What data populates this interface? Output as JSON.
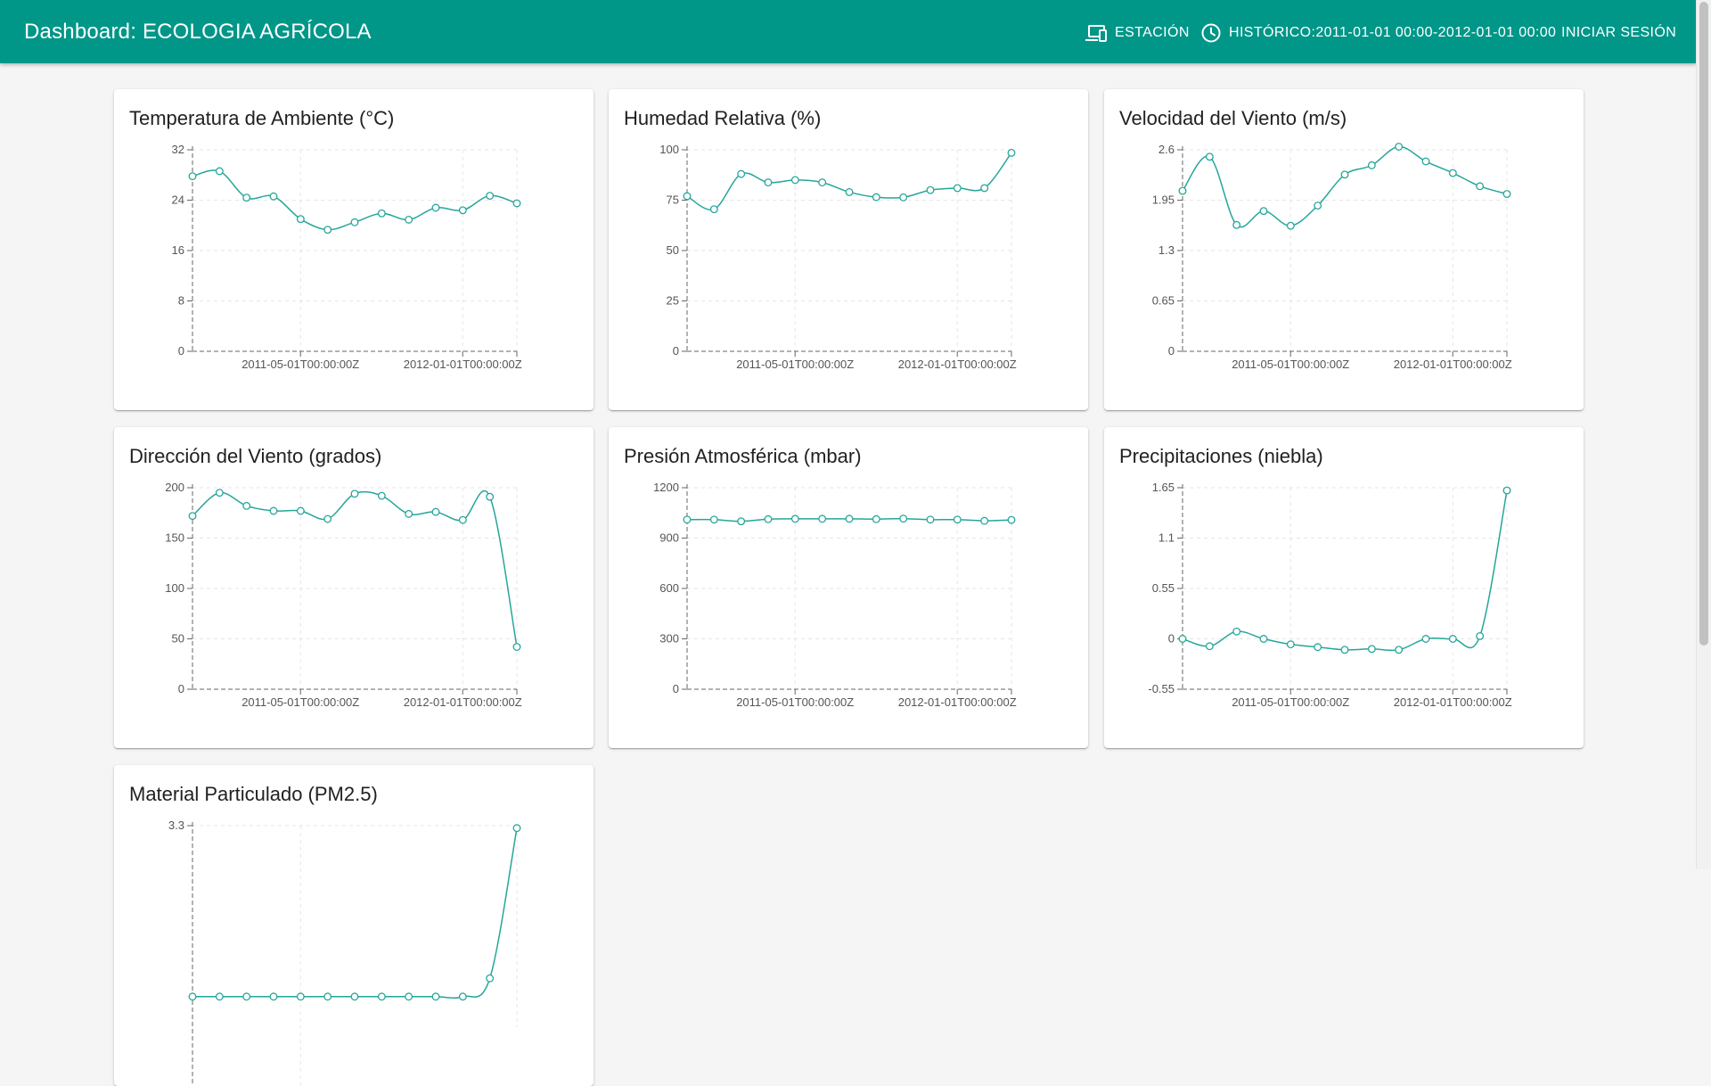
{
  "app": {
    "title": "Dashboard: ECOLOGIA AGRÍCOLA",
    "nav": {
      "station_label": "ESTACIÓN",
      "history_label": "HISTÓRICO:2011-01-01 00:00-2012-01-01 00:00",
      "login_label": "INICIAR SESIÓN"
    }
  },
  "colors": {
    "appbar": "#009688",
    "series": "#26a69a"
  },
  "icons": {
    "station": "devices-icon",
    "history": "clock-icon"
  },
  "charts": [
    {
      "title": "Temperatura de Ambiente (°C)",
      "chart_data": {
        "type": "line",
        "x_ticks": [
          "2011-05-01T00:00:00Z",
          "2012-01-01T00:00:00Z"
        ],
        "y_ticks": [
          "0",
          "8",
          "16",
          "24",
          "32"
        ],
        "ylim": [
          0,
          32
        ],
        "values": [
          27.8,
          28.6,
          24.4,
          24.6,
          21.0,
          19.3,
          20.5,
          21.9,
          20.9,
          22.8,
          22.4,
          24.7,
          23.5
        ]
      }
    },
    {
      "title": "Humedad Relativa (%)",
      "chart_data": {
        "type": "line",
        "x_ticks": [
          "2011-05-01T00:00:00Z",
          "2012-01-01T00:00:00Z"
        ],
        "y_ticks": [
          "0",
          "25",
          "50",
          "75",
          "100"
        ],
        "ylim": [
          0,
          100
        ],
        "values": [
          77.0,
          70.5,
          88.0,
          83.8,
          85.0,
          83.8,
          79.0,
          76.5,
          76.4,
          80.0,
          81.0,
          81.0,
          98.5
        ]
      }
    },
    {
      "title": "Velocidad del Viento (m/s)",
      "chart_data": {
        "type": "line",
        "x_ticks": [
          "2011-05-01T00:00:00Z",
          "2012-01-01T00:00:00Z"
        ],
        "y_ticks": [
          "0",
          "0.65",
          "1.3",
          "1.95",
          "2.6"
        ],
        "ylim": [
          0,
          2.6
        ],
        "values": [
          2.07,
          2.51,
          1.63,
          1.81,
          1.62,
          1.88,
          2.28,
          2.4,
          2.64,
          2.45,
          2.3,
          2.13,
          2.03
        ]
      }
    },
    {
      "title": "Dirección del Viento (grados)",
      "chart_data": {
        "type": "line",
        "x_ticks": [
          "2011-05-01T00:00:00Z",
          "2012-01-01T00:00:00Z"
        ],
        "y_ticks": [
          "0",
          "50",
          "100",
          "150",
          "200"
        ],
        "ylim": [
          0,
          200
        ],
        "values": [
          172,
          195,
          182,
          177,
          177,
          169,
          194,
          192,
          174,
          176,
          168,
          191,
          42
        ]
      }
    },
    {
      "title": "Presión Atmosférica (mbar)",
      "chart_data": {
        "type": "line",
        "x_ticks": [
          "2011-05-01T00:00:00Z",
          "2012-01-01T00:00:00Z"
        ],
        "y_ticks": [
          "0",
          "300",
          "600",
          "900",
          "1200"
        ],
        "ylim": [
          0,
          1200
        ],
        "values": [
          1010,
          1010,
          1000,
          1013,
          1015,
          1015,
          1015,
          1013,
          1016,
          1010,
          1010,
          1003,
          1008
        ]
      }
    },
    {
      "title": "Precipitaciones (niebla)",
      "chart_data": {
        "type": "line",
        "x_ticks": [
          "2011-05-01T00:00:00Z",
          "2012-01-01T00:00:00Z"
        ],
        "y_ticks": [
          "-0.55",
          "0",
          "0.55",
          "1.1",
          "1.65"
        ],
        "ylim": [
          -0.55,
          1.65
        ],
        "values": [
          0.0,
          -0.08,
          0.08,
          0.0,
          -0.06,
          -0.09,
          -0.12,
          -0.11,
          -0.12,
          0.0,
          0.0,
          0.03,
          1.62
        ]
      }
    },
    {
      "title": "Material Particulado (PM2.5)",
      "chart_data": {
        "type": "line",
        "x_ticks": [],
        "y_ticks": [
          "3.3"
        ],
        "ylim": [
          0,
          3.3
        ],
        "values": [
          0.5,
          0.5,
          0.5,
          0.5,
          0.5,
          0.5,
          0.5,
          0.5,
          0.5,
          0.5,
          0.5,
          0.8,
          3.26
        ]
      }
    }
  ]
}
